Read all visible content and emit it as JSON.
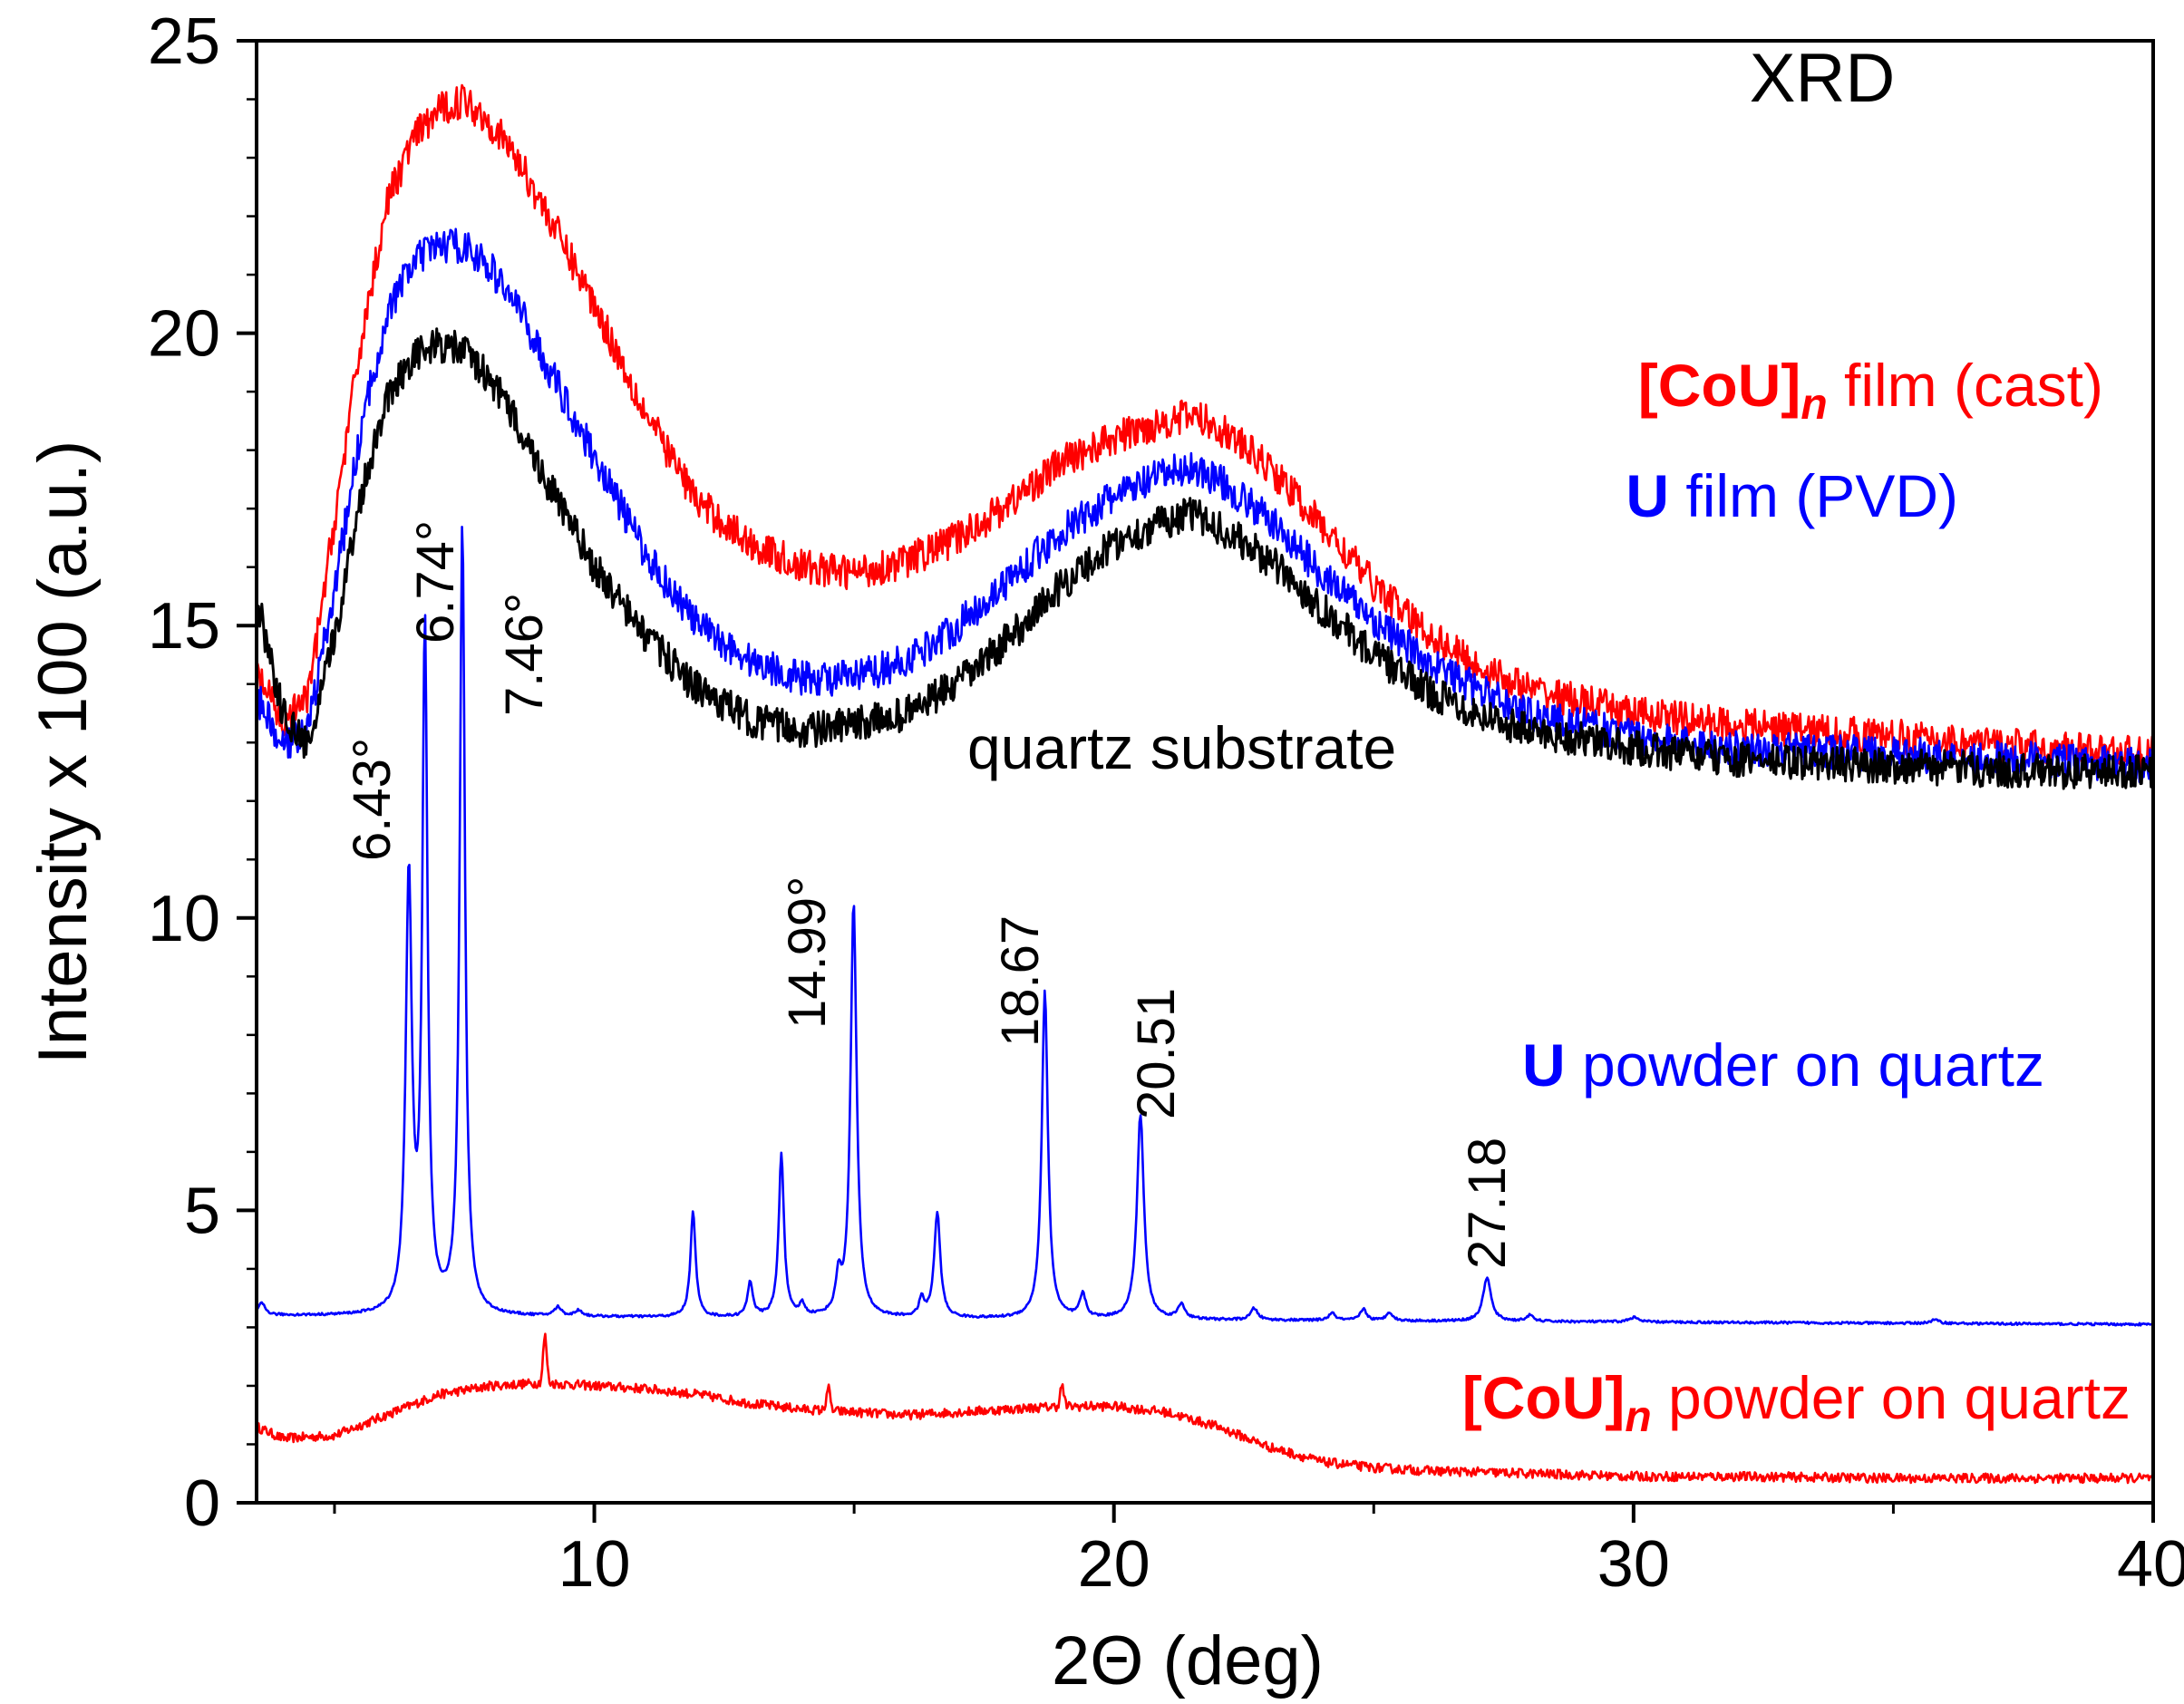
{
  "chart_data": {
    "type": "line",
    "title": "XRD",
    "xlabel": "2Θ (deg)",
    "ylabel": "Intensity x 100 (a.u.)",
    "xlim": [
      3.5,
      40
    ],
    "ylim": [
      0,
      25
    ],
    "xticks": [
      10,
      20,
      30,
      40
    ],
    "yticks": [
      0,
      5,
      10,
      15,
      20,
      25
    ],
    "grid": false,
    "series": [
      {
        "name": "[CoU]n film (cast)",
        "label_main": "[CoU]",
        "label_sub": "n",
        "label_rest": " film (cast)",
        "color": "#ff0000",
        "noise": 0.3,
        "x": [
          3.5,
          4.0,
          4.5,
          5.0,
          5.5,
          6.0,
          6.5,
          7.0,
          7.5,
          8.0,
          8.5,
          9.0,
          10.0,
          11.0,
          12.0,
          13.0,
          14.0,
          15.0,
          16.0,
          17.0,
          18.0,
          19.0,
          20.0,
          21.0,
          21.5,
          22.0,
          23.0,
          24.0,
          25.0,
          26.0,
          27.0,
          28.0,
          30.0,
          32.0,
          35.0,
          38.0,
          40.0
        ],
        "y": [
          14.2,
          13.3,
          13.8,
          16.8,
          19.8,
          22.2,
          23.3,
          23.8,
          24.0,
          23.6,
          23.0,
          22.2,
          20.5,
          18.6,
          17.1,
          16.4,
          16.0,
          15.9,
          16.1,
          16.5,
          17.1,
          17.8,
          18.2,
          18.5,
          18.6,
          18.4,
          17.7,
          16.7,
          15.7,
          14.9,
          14.3,
          13.9,
          13.5,
          13.3,
          13.1,
          12.9,
          12.8
        ]
      },
      {
        "name": "U film (PVD)",
        "label_main": "U",
        "label_sub": "",
        "label_rest": " film (PVD)",
        "color": "#0000ff",
        "noise": 0.3,
        "x": [
          3.5,
          4.0,
          4.5,
          5.0,
          5.5,
          6.0,
          6.5,
          7.0,
          7.5,
          8.0,
          8.5,
          9.0,
          10.0,
          11.0,
          12.0,
          13.0,
          14.0,
          15.0,
          16.0,
          17.0,
          18.0,
          19.0,
          20.0,
          21.0,
          21.5,
          22.0,
          23.0,
          24.0,
          25.0,
          26.0,
          27.0,
          28.0,
          30.0,
          32.0,
          35.0,
          38.0,
          40.0
        ],
        "y": [
          13.8,
          12.9,
          13.3,
          15.6,
          18.3,
          20.3,
          21.2,
          21.5,
          21.5,
          21.1,
          20.5,
          19.6,
          17.9,
          16.2,
          15.0,
          14.4,
          14.1,
          14.1,
          14.4,
          15.0,
          15.8,
          16.6,
          17.2,
          17.6,
          17.7,
          17.5,
          16.8,
          15.9,
          15.1,
          14.4,
          13.9,
          13.5,
          13.1,
          12.9,
          12.8,
          12.7,
          12.6
        ]
      },
      {
        "name": "quartz substrate",
        "label_main": "",
        "label_sub": "",
        "label_rest": "quartz substrate",
        "color": "#000000",
        "noise": 0.3,
        "x": [
          3.5,
          4.0,
          4.5,
          5.0,
          5.5,
          6.0,
          6.5,
          7.0,
          7.5,
          8.0,
          8.5,
          9.0,
          10.0,
          11.0,
          12.0,
          13.0,
          14.0,
          15.0,
          16.0,
          17.0,
          18.0,
          19.0,
          20.0,
          21.0,
          21.5,
          22.0,
          23.0,
          24.0,
          25.0,
          26.0,
          27.0,
          28.0,
          30.0,
          32.0,
          35.0,
          38.0,
          40.0
        ],
        "y": [
          15.5,
          13.5,
          12.9,
          14.8,
          17.2,
          18.9,
          19.6,
          19.8,
          19.7,
          19.2,
          18.5,
          17.6,
          16.0,
          14.8,
          13.9,
          13.4,
          13.2,
          13.3,
          13.5,
          14.0,
          14.8,
          15.7,
          16.4,
          16.8,
          16.9,
          16.7,
          16.1,
          15.3,
          14.5,
          13.9,
          13.5,
          13.2,
          12.9,
          12.7,
          12.6,
          12.5,
          12.5
        ]
      },
      {
        "name": "U powder on quartz",
        "label_main": "U",
        "label_sub": "",
        "label_rest": " powder on quartz",
        "color": "#0000ff",
        "baseline": [
          3.2,
          3.05
        ],
        "peaks": [
          {
            "x": 3.6,
            "h": 0.2,
            "w": 0.08
          },
          {
            "x": 6.43,
            "h": 7.4,
            "w": 0.07
          },
          {
            "x": 6.74,
            "h": 11.6,
            "w": 0.06
          },
          {
            "x": 7.46,
            "h": 13.5,
            "w": 0.06
          },
          {
            "x": 9.3,
            "h": 0.15,
            "w": 0.08
          },
          {
            "x": 9.7,
            "h": 0.1,
            "w": 0.08
          },
          {
            "x": 11.9,
            "h": 1.8,
            "w": 0.06
          },
          {
            "x": 13.0,
            "h": 0.6,
            "w": 0.06
          },
          {
            "x": 13.6,
            "h": 2.8,
            "w": 0.06
          },
          {
            "x": 14.0,
            "h": 0.2,
            "w": 0.06
          },
          {
            "x": 14.7,
            "h": 0.6,
            "w": 0.06
          },
          {
            "x": 14.99,
            "h": 7.1,
            "w": 0.07
          },
          {
            "x": 16.3,
            "h": 0.3,
            "w": 0.06
          },
          {
            "x": 16.6,
            "h": 1.8,
            "w": 0.07
          },
          {
            "x": 18.67,
            "h": 5.6,
            "w": 0.07
          },
          {
            "x": 19.4,
            "h": 0.4,
            "w": 0.07
          },
          {
            "x": 20.51,
            "h": 3.5,
            "w": 0.08
          },
          {
            "x": 21.3,
            "h": 0.25,
            "w": 0.08
          },
          {
            "x": 22.7,
            "h": 0.2,
            "w": 0.08
          },
          {
            "x": 24.2,
            "h": 0.12,
            "w": 0.08
          },
          {
            "x": 24.8,
            "h": 0.2,
            "w": 0.07
          },
          {
            "x": 25.3,
            "h": 0.15,
            "w": 0.07
          },
          {
            "x": 27.18,
            "h": 0.75,
            "w": 0.09
          },
          {
            "x": 28.0,
            "h": 0.1,
            "w": 0.08
          },
          {
            "x": 30.0,
            "h": 0.08,
            "w": 0.1
          },
          {
            "x": 35.8,
            "h": 0.06,
            "w": 0.1
          }
        ]
      },
      {
        "name": "[CoU]n powder on quartz",
        "label_main": "[CoU]",
        "label_sub": "n",
        "label_rest": " powder on quartz",
        "color": "#ff0000",
        "noise": 0.08,
        "x": [
          3.5,
          4.0,
          5.0,
          6.0,
          7.0,
          8.0,
          9.0,
          10.0,
          11.0,
          12.0,
          13.0,
          14.0,
          15.0,
          16.0,
          17.0,
          18.0,
          19.0,
          20.0,
          21.0,
          22.0,
          23.0,
          24.0,
          25.0,
          26.0,
          28.0,
          30.0,
          32.0,
          35.0,
          38.0,
          40.0
        ],
        "y": [
          1.3,
          1.1,
          1.15,
          1.5,
          1.85,
          2.0,
          2.05,
          2.0,
          1.95,
          1.85,
          1.7,
          1.6,
          1.55,
          1.5,
          1.55,
          1.6,
          1.65,
          1.65,
          1.55,
          1.3,
          0.95,
          0.7,
          0.6,
          0.55,
          0.5,
          0.45,
          0.45,
          0.42,
          0.42,
          0.42
        ],
        "spikes": [
          {
            "x": 9.05,
            "h": 0.8
          },
          {
            "x": 14.5,
            "h": 0.4
          },
          {
            "x": 19.0,
            "h": 0.35
          }
        ]
      }
    ],
    "annotations": [
      {
        "text": "6.43°",
        "x": 6.43
      },
      {
        "text": "6.74°",
        "x": 6.74
      },
      {
        "text": "7.46°",
        "x": 7.46
      },
      {
        "text": "14.99°",
        "x": 14.99
      },
      {
        "text": "18.67",
        "x": 18.67
      },
      {
        "text": "20.51",
        "x": 20.51
      },
      {
        "text": "27.18",
        "x": 27.18
      }
    ]
  }
}
